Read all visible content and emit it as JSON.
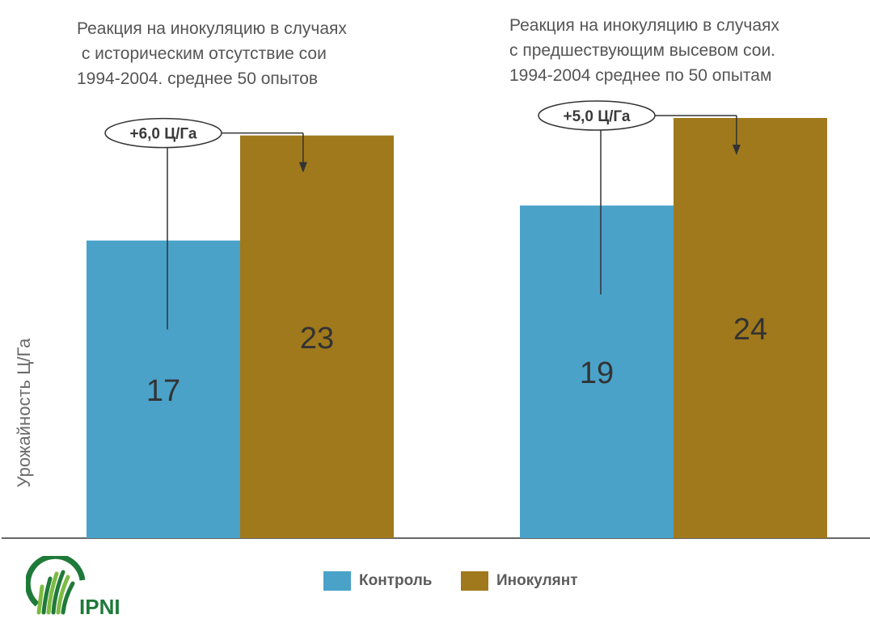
{
  "chart_data": {
    "type": "bar",
    "categories": [
      "Реакция на инокуляцию в случаях\n с историческим отсутствие сои\n1994-2004. среднее 50 опытов",
      "Реакция на инокуляцию в случаях\nс предшествующим высевом сои.\n1994-2004 среднее по 50 опытам"
    ],
    "series": [
      {
        "name": "Контроль",
        "values": [
          17,
          19
        ],
        "color": "#4aa2c9"
      },
      {
        "name": "Инокулянт",
        "values": [
          23,
          24
        ],
        "color": "#a0791c"
      }
    ],
    "ylabel": "Урожайность Ц/Га",
    "ylim": [
      0,
      30
    ],
    "annotations": [
      "+6,0 Ц/Га",
      "+5,0 Ц/Га"
    ],
    "grid": false,
    "legend": "bottom-center"
  },
  "logo": {
    "text": "IPNI",
    "colors": [
      "#1f7a3a",
      "#7dbb42"
    ]
  },
  "value_label_color": "#333333",
  "annotation_color": "#333333"
}
